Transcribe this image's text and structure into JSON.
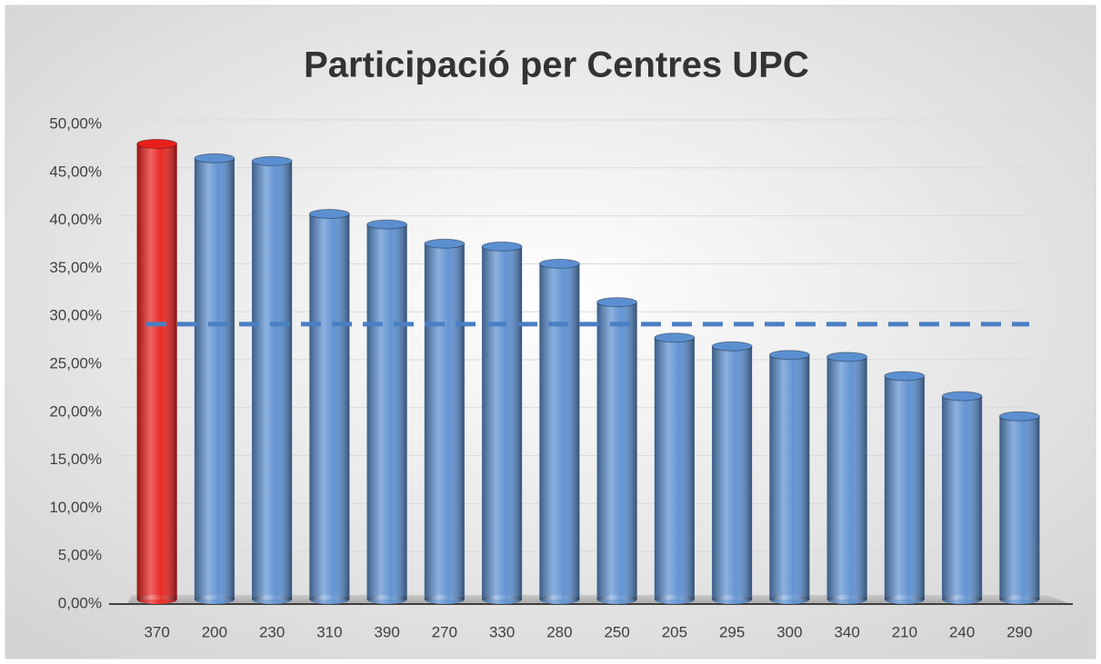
{
  "chart_data": {
    "type": "bar",
    "title": "Participació per Centres UPC",
    "categories": [
      "370",
      "200",
      "230",
      "310",
      "390",
      "270",
      "330",
      "280",
      "250",
      "205",
      "295",
      "300",
      "340",
      "210",
      "240",
      "290"
    ],
    "values": [
      47.5,
      46.0,
      45.7,
      40.2,
      39.1,
      37.1,
      36.8,
      35.0,
      31.0,
      27.3,
      26.4,
      25.5,
      25.3,
      23.3,
      21.2,
      19.1
    ],
    "colors": [
      "#e8201c",
      "#5b8fd0",
      "#5b8fd0",
      "#5b8fd0",
      "#5b8fd0",
      "#5b8fd0",
      "#5b8fd0",
      "#5b8fd0",
      "#5b8fd0",
      "#5b8fd0",
      "#5b8fd0",
      "#5b8fd0",
      "#5b8fd0",
      "#5b8fd0",
      "#5b8fd0",
      "#5b8fd0"
    ],
    "reference_line": 28.7,
    "reference_color": "#4a7fc4",
    "ylim": [
      0,
      50
    ],
    "yticks": [
      {
        "value": 0,
        "label": "0,00%"
      },
      {
        "value": 5,
        "label": "5,00%"
      },
      {
        "value": 10,
        "label": "10,00%"
      },
      {
        "value": 15,
        "label": "15,00%"
      },
      {
        "value": 20,
        "label": "20,00%"
      },
      {
        "value": 25,
        "label": "25,00%"
      },
      {
        "value": 30,
        "label": "30,00%"
      },
      {
        "value": 35,
        "label": "35,00%"
      },
      {
        "value": 40,
        "label": "40,00%"
      },
      {
        "value": 45,
        "label": "45,00%"
      },
      {
        "value": 50,
        "label": "50,00%"
      }
    ],
    "grid": true
  }
}
